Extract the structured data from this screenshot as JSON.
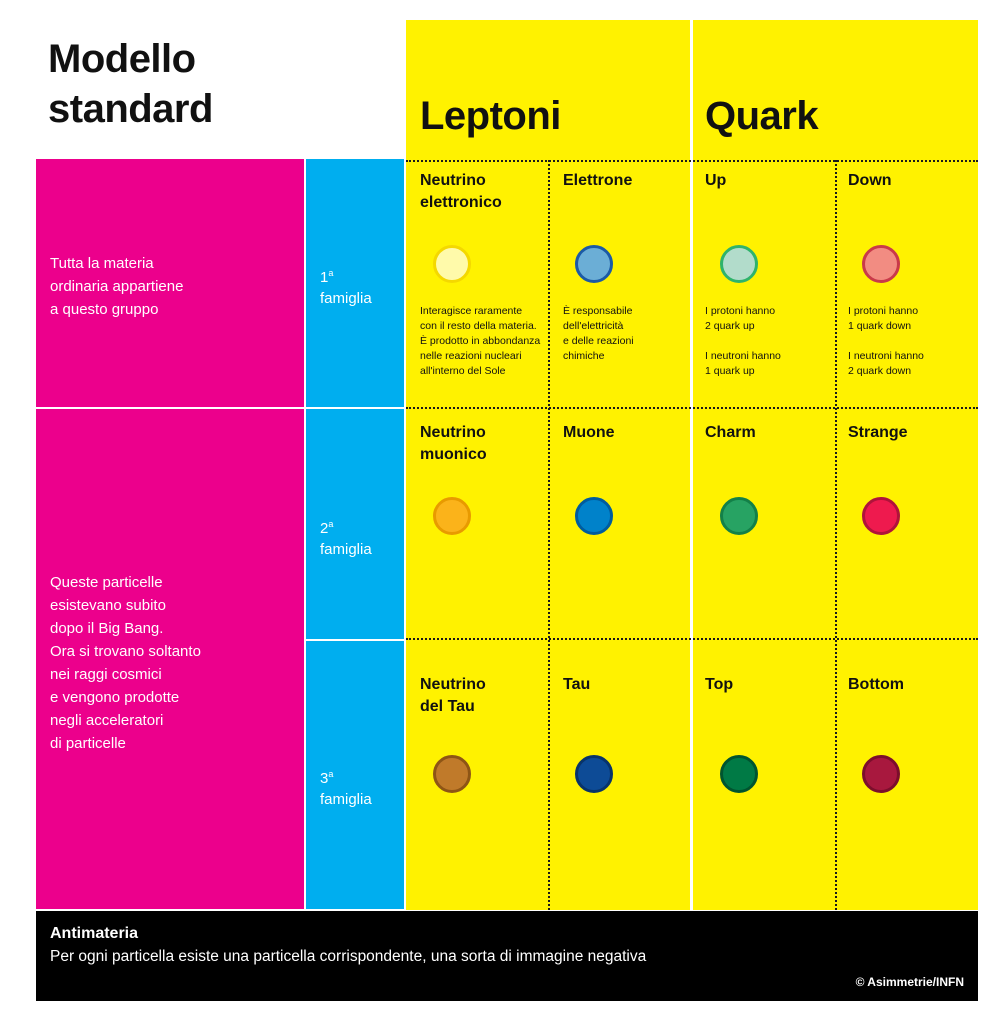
{
  "title": "Modello\nstandard",
  "groups": {
    "leptons": "Leptoni",
    "quarks": "Quark"
  },
  "rows": [
    {
      "description": "Tutta  la  materia\nordinaria   appartiene\na  questo   gruppo",
      "family_num": "1",
      "family_sup": "a",
      "family_label": "famiglia"
    },
    {
      "description": "Queste   particelle\nesistevano    subito\ndopo  il  Big  Bang.\nOra  si  trovano   soltanto\nnei  raggi  cosmici\ne  vengono   prodotte\nnegli   acceleratori\ndi  particelle",
      "family_num": "2",
      "family_sup": "a",
      "family_label": "famiglia"
    },
    {
      "family_num": "3",
      "family_sup": "a",
      "family_label": "famiglia"
    }
  ],
  "particles": [
    {
      "name": "Neutrino\nelettronico",
      "fill": "#fffaaa",
      "ring": "#f4d800",
      "note": "Interagisce raramente\ncon il resto della materia.\nÈ prodotto in abbondanza\nnelle reazioni nucleari\nall'interno del Sole"
    },
    {
      "name": "Elettrone",
      "fill": "#6baed6",
      "ring": "#1b5aa6",
      "note": "È responsabile\ndell'elettricità\ne delle reazioni\nchimiche"
    },
    {
      "name": "Up",
      "fill": "#b2dccb",
      "ring": "#2fb36b",
      "note": "I protoni hanno\n2 quark up\n\nI neutroni hanno\n1 quark up"
    },
    {
      "name": "Down",
      "fill": "#f28c82",
      "ring": "#c93a4a",
      "note": "I protoni hanno\n1 quark down\n\nI neutroni hanno\n2 quark down"
    },
    {
      "name": "Neutrino\nmuonico",
      "fill": "#fbb31a",
      "ring": "#e89a00",
      "note": ""
    },
    {
      "name": "Muone",
      "fill": "#0082ca",
      "ring": "#005c9e",
      "note": ""
    },
    {
      "name": "Charm",
      "fill": "#27a363",
      "ring": "#138048",
      "note": ""
    },
    {
      "name": "Strange",
      "fill": "#ee1a4e",
      "ring": "#b0133b",
      "note": ""
    },
    {
      "name": "Neutrino\ndel Tau",
      "fill": "#c07a2a",
      "ring": "#8e5515",
      "note": ""
    },
    {
      "name": "Tau",
      "fill": "#0d4b96",
      "ring": "#08336a",
      "note": ""
    },
    {
      "name": "Top",
      "fill": "#007a45",
      "ring": "#00542f",
      "note": ""
    },
    {
      "name": "Bottom",
      "fill": "#a8183e",
      "ring": "#7c0e2c",
      "note": ""
    }
  ],
  "footer": {
    "title": "Antimateria",
    "text": "Per ogni particella esiste una particella corrispondente, una sorta di immagine negativa",
    "credit": "© Asimmetrie/INFN"
  }
}
